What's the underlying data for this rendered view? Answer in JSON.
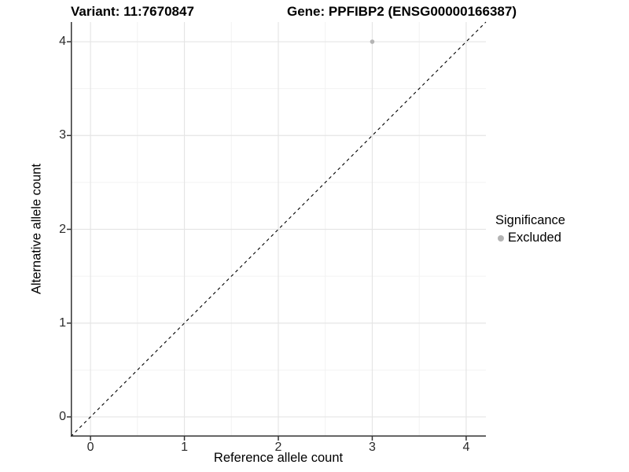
{
  "titles": {
    "variant": "Variant: 11:7670847",
    "gene": "Gene: PPFIBP2 (ENSG00000166387)"
  },
  "chart_data": {
    "type": "scatter",
    "title": "Variant: 11:7670847   Gene: PPFIBP2 (ENSG00000166387)",
    "xlabel": "Reference allele count",
    "ylabel": "Alternative allele count",
    "xlim": [
      -0.21,
      4.21
    ],
    "ylim": [
      -0.21,
      4.21
    ],
    "xticks": [
      0,
      1,
      2,
      3,
      4
    ],
    "yticks": [
      0,
      1,
      2,
      3,
      4
    ],
    "xticks_minor": [
      0.5,
      1.5,
      2.5,
      3.5
    ],
    "yticks_minor": [
      0.5,
      1.5,
      2.5,
      3.5
    ],
    "grid": "major+minor",
    "points": [
      {
        "x": 3,
        "y": 4,
        "series": "Excluded"
      }
    ],
    "identity_line": {
      "style": "dashed",
      "from": [
        -0.21,
        -0.21
      ],
      "to": [
        4.21,
        4.21
      ]
    },
    "legend": {
      "title": "Significance",
      "position": "right",
      "entries": [
        {
          "label": "Excluded",
          "color": "#b4b4b4"
        }
      ]
    },
    "colors": {
      "point": "#b4b4b4",
      "grid_major": "#e5e5e5",
      "grid_minor": "#f2f2f2",
      "axis": "#333333",
      "identity_line": "#000000",
      "tick_text": "#2b2b2b"
    }
  }
}
